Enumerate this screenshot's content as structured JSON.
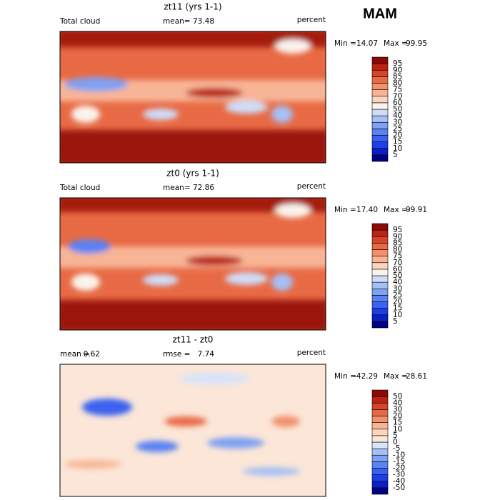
{
  "title": "MAM",
  "panels": [
    {
      "title": "zt11 (yrs 1-1)",
      "left_label": "Total cloud",
      "stats": [
        {
          "label": "mean=",
          "value": "73.48"
        }
      ],
      "units": "percent",
      "min_label": "Min =",
      "min": "14.07",
      "max_label": "Max =",
      "max": "99.95",
      "levels": [
        5,
        10,
        15,
        20,
        25,
        30,
        40,
        50,
        60,
        70,
        75,
        80,
        85,
        90,
        95
      ],
      "colors": [
        "#000080",
        "#0a1fc8",
        "#1f3fe6",
        "#3a62f0",
        "#5a82f2",
        "#7fa1f2",
        "#a6c0f5",
        "#cfdcf8",
        "#faf3ec",
        "#fbd5c0",
        "#f8b596",
        "#f2916e",
        "#e86a45",
        "#d6452a",
        "#bb2414",
        "#8b0a05"
      ]
    },
    {
      "title": "zt0 (yrs 1-1)",
      "left_label": "Total cloud",
      "stats": [
        {
          "label": "mean=",
          "value": "72.86"
        }
      ],
      "units": "percent",
      "min_label": "Min =",
      "min": "17.40",
      "max_label": "Max =",
      "max": "99.91",
      "levels": [
        5,
        10,
        15,
        20,
        25,
        30,
        40,
        50,
        60,
        70,
        75,
        80,
        85,
        90,
        95
      ],
      "colors": [
        "#000080",
        "#0a1fc8",
        "#1f3fe6",
        "#3a62f0",
        "#5a82f2",
        "#7fa1f2",
        "#a6c0f5",
        "#cfdcf8",
        "#faf3ec",
        "#fbd5c0",
        "#f8b596",
        "#f2916e",
        "#e86a45",
        "#d6452a",
        "#bb2414",
        "#8b0a05"
      ]
    },
    {
      "title": "zt11 - zt0",
      "stats": [
        {
          "label": "mean =",
          "value": "0.62"
        },
        {
          "label": "rmse =",
          "value": "7.74"
        }
      ],
      "units": "percent",
      "min_label": "Min =",
      "min": "-42.29",
      "max_label": "Max =",
      "max": "28.61",
      "levels": [
        -50,
        -40,
        -30,
        -20,
        -15,
        -10,
        -5,
        0,
        5,
        10,
        15,
        20,
        30,
        40,
        50
      ],
      "colors": [
        "#000080",
        "#0a1fc8",
        "#1f3fe6",
        "#3a62f0",
        "#5a82f2",
        "#7fa1f2",
        "#a6c0f5",
        "#d8e4fa",
        "#fbe6d8",
        "#fbd5c0",
        "#f8b596",
        "#f2916e",
        "#e86a45",
        "#d6452a",
        "#bb2414",
        "#8b0a05"
      ]
    }
  ]
}
